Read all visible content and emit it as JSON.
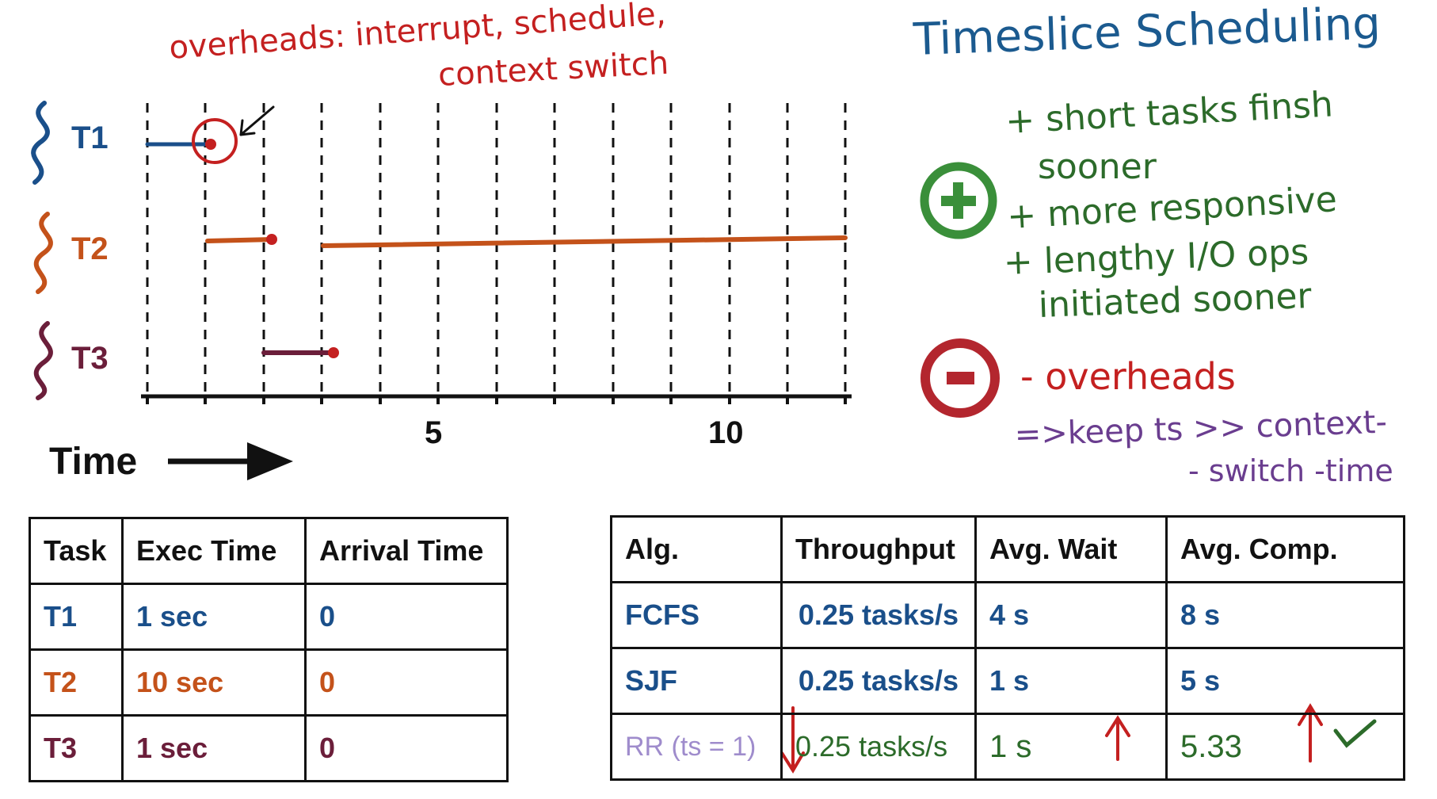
{
  "title": "Timeslice Scheduling",
  "overheads_note": {
    "line1": "overheads: interrupt, schedule,",
    "line2": "context switch"
  },
  "tasks_axis": {
    "t1": "T1",
    "t2": "T2",
    "t3": "T3"
  },
  "time_label": "Time",
  "axis_ticks": {
    "t5": "5",
    "t10": "10"
  },
  "pros": {
    "line1": "+ short tasks finsh",
    "line2": "sooner",
    "line3": "+ more responsive",
    "line4": "+ lengthy I/O ops",
    "line5": "initiated sooner"
  },
  "cons": {
    "line1": "- overheads"
  },
  "keep_note": {
    "line1": "=>keep ts >> context-",
    "line2": "- switch -time"
  },
  "colors": {
    "t1": "#1a4f8a",
    "t2": "#c4521a",
    "t3": "#6b1e3a",
    "plus": "#3a8f3a",
    "minus": "#b3262e",
    "title": "#1b5a8f"
  },
  "task_table": {
    "headers": [
      "Task",
      "Exec Time",
      "Arrival Time"
    ],
    "rows": [
      [
        "T1",
        "1 sec",
        "0"
      ],
      [
        "T2",
        "10 sec",
        "0"
      ],
      [
        "T3",
        "1 sec",
        "0"
      ]
    ]
  },
  "alg_table": {
    "headers": [
      "Alg.",
      "Throughput",
      "Avg. Wait",
      "Avg. Comp."
    ],
    "rows": [
      [
        "FCFS",
        "0.25 tasks/s",
        "4 s",
        "8 s"
      ],
      [
        "SJF",
        "0.25 tasks/s",
        "1 s",
        "5 s"
      ],
      [
        "RR (ts = 1)",
        "0.25 tasks/s",
        "1 s",
        "5.33"
      ]
    ]
  }
}
